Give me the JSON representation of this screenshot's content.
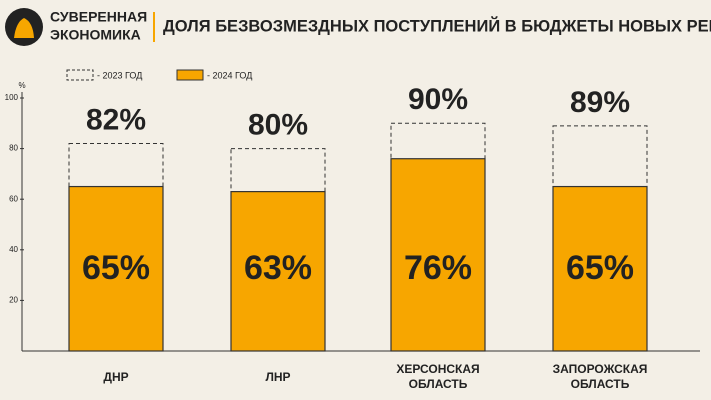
{
  "brand": {
    "line1": "СУВЕРЕННАЯ",
    "line2": "ЭКОНОМИКА"
  },
  "chart_data": {
    "type": "bar",
    "title": "ДОЛЯ БЕЗВОЗМЕЗДНЫХ ПОСТУПЛЕНИЙ В БЮДЖЕТЫ НОВЫХ РЕГИОНОВ",
    "y_unit": "%",
    "categories": [
      "ДНР",
      "ЛНР",
      "ХЕРСОНСКАЯ\nОБЛАСТЬ",
      "ЗАПОРОЖСКАЯ\nОБЛАСТЬ"
    ],
    "series": [
      {
        "name": "- 2023 ГОД",
        "color": "#333333",
        "style": "dashed",
        "values": [
          82,
          80,
          90,
          89
        ],
        "value_labels": [
          "82%",
          "80%",
          "90%",
          "89%"
        ]
      },
      {
        "name": "- 2024 ГОД",
        "color": "#f7a600",
        "style": "solid",
        "values": [
          65,
          63,
          76,
          65
        ],
        "value_labels": [
          "65%",
          "63%",
          "76%",
          "65%"
        ]
      }
    ],
    "ylim": [
      0,
      100
    ],
    "yticks": [
      20,
      40,
      60,
      80,
      100
    ],
    "grid": false
  }
}
